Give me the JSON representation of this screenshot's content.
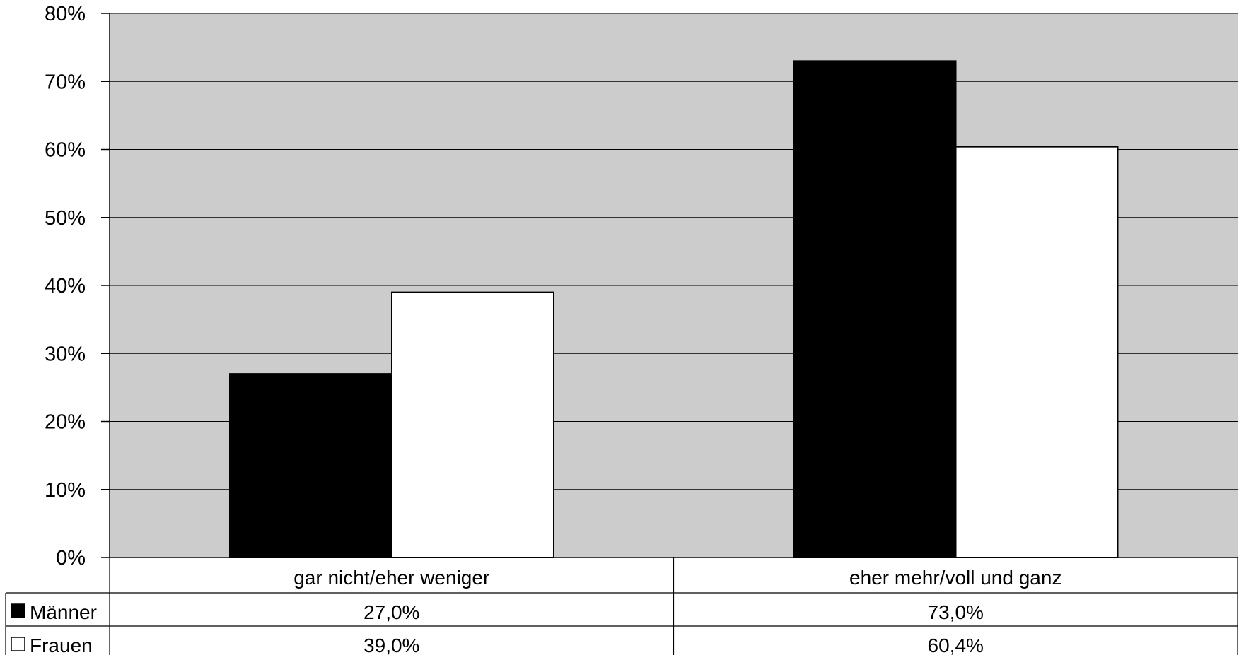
{
  "chart_data": {
    "type": "bar",
    "title": "",
    "xlabel": "",
    "ylabel": "",
    "categories": [
      "gar nicht/eher weniger",
      "eher mehr/voll und ganz"
    ],
    "series": [
      {
        "name": "Männer",
        "values": [
          27.0,
          73.0
        ],
        "color": "#000000",
        "labels": [
          "27,0%",
          "73,0%"
        ]
      },
      {
        "name": "Frauen",
        "values": [
          39.0,
          60.4
        ],
        "color": "#ffffff",
        "labels": [
          "39,0%",
          "60,4%"
        ]
      }
    ],
    "ylim": [
      0,
      80
    ],
    "yticks": [
      "0%",
      "10%",
      "20%",
      "30%",
      "40%",
      "50%",
      "60%",
      "70%",
      "80%"
    ],
    "grid": true,
    "plot_background": "#cccccc",
    "legend_placement": "data-table-below"
  }
}
